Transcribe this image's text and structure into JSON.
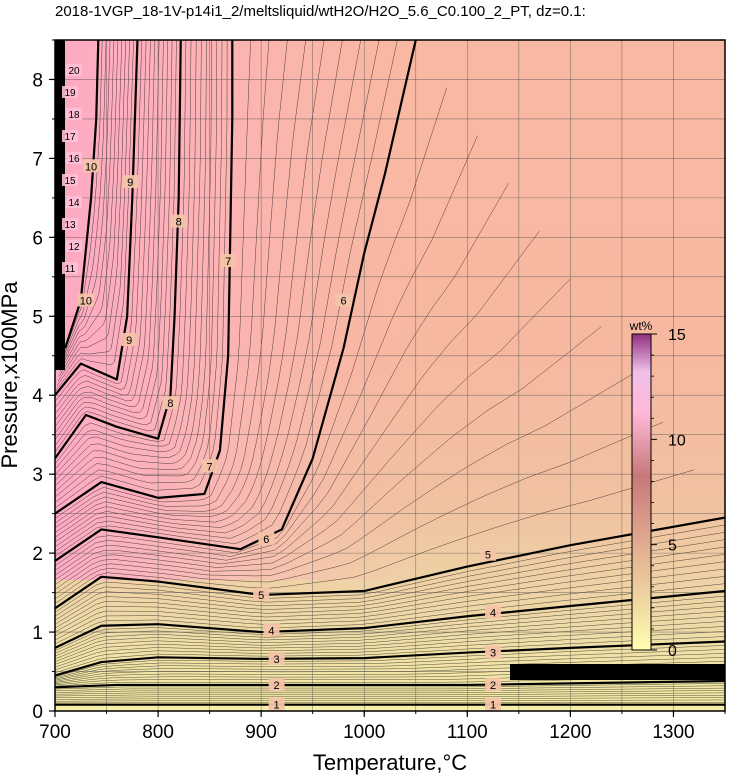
{
  "chart_data": {
    "type": "contour",
    "title": "2018-1VGP_18-1V-p14i1_2/meltsliquid/wtH2O/H2O_5.6_C0.100_2_PT, dz=0.1:",
    "xlabel": "Temperature,°C",
    "ylabel": "Pressure,x100MPa",
    "xlim": [
      700,
      1350
    ],
    "ylim": [
      0,
      8.5
    ],
    "x_ticks": [
      700,
      800,
      900,
      1000,
      1100,
      1200,
      1300
    ],
    "y_ticks": [
      0,
      1,
      2,
      3,
      4,
      5,
      6,
      7,
      8
    ],
    "grid": true,
    "colorbar": {
      "title": "wt%",
      "ticks": [
        0,
        5,
        10,
        15
      ],
      "range": [
        0,
        15
      ],
      "colors": [
        "#ffffb0",
        "#e8c898",
        "#c87878",
        "#ffb0d0",
        "#903080"
      ]
    },
    "contour_levels": [
      {
        "level": 1,
        "label": "1",
        "points": [
          [
            700,
            0.08
          ],
          [
            800,
            0.08
          ],
          [
            900,
            0.08
          ],
          [
            1000,
            0.08
          ],
          [
            1100,
            0.08
          ],
          [
            1200,
            0.08
          ],
          [
            1350,
            0.08
          ]
        ],
        "labels_at": [
          [
            915,
            0.08
          ],
          [
            1125,
            0.08
          ]
        ]
      },
      {
        "level": 2,
        "label": "2",
        "points": [
          [
            700,
            0.3
          ],
          [
            760,
            0.33
          ],
          [
            900,
            0.33
          ],
          [
            1100,
            0.33
          ],
          [
            1200,
            0.35
          ],
          [
            1350,
            0.38
          ]
        ],
        "labels_at": [
          [
            915,
            0.33
          ],
          [
            1125,
            0.33
          ]
        ]
      },
      {
        "level": 3,
        "label": "3",
        "points": [
          [
            700,
            0.45
          ],
          [
            745,
            0.62
          ],
          [
            800,
            0.68
          ],
          [
            900,
            0.66
          ],
          [
            1000,
            0.67
          ],
          [
            1100,
            0.74
          ],
          [
            1200,
            0.8
          ],
          [
            1350,
            0.88
          ]
        ],
        "labels_at": [
          [
            915,
            0.66
          ],
          [
            1125,
            0.74
          ]
        ]
      },
      {
        "level": 4,
        "label": "4",
        "points": [
          [
            700,
            0.8
          ],
          [
            745,
            1.08
          ],
          [
            800,
            1.1
          ],
          [
            900,
            1.0
          ],
          [
            1000,
            1.05
          ],
          [
            1100,
            1.2
          ],
          [
            1200,
            1.33
          ],
          [
            1350,
            1.52
          ]
        ],
        "labels_at": [
          [
            910,
            1.02
          ],
          [
            1125,
            1.25
          ]
        ]
      },
      {
        "level": 5,
        "label": "5",
        "points": [
          [
            700,
            1.3
          ],
          [
            745,
            1.7
          ],
          [
            800,
            1.64
          ],
          [
            900,
            1.47
          ],
          [
            1000,
            1.52
          ],
          [
            1100,
            1.83
          ],
          [
            1200,
            2.1
          ],
          [
            1350,
            2.45
          ]
        ],
        "labels_at": [
          [
            900,
            1.47
          ],
          [
            1120,
            1.98
          ]
        ]
      },
      {
        "level": 6,
        "label": "6",
        "points": [
          [
            700,
            1.9
          ],
          [
            745,
            2.3
          ],
          [
            800,
            2.2
          ],
          [
            880,
            2.05
          ],
          [
            920,
            2.3
          ],
          [
            950,
            3.2
          ],
          [
            980,
            4.6
          ],
          [
            1000,
            5.8
          ],
          [
            1020,
            6.8
          ],
          [
            1050,
            8.5
          ]
        ],
        "labels_at": [
          [
            905,
            2.18
          ],
          [
            980,
            5.2
          ]
        ]
      },
      {
        "level": 7,
        "label": "7",
        "points": [
          [
            700,
            2.5
          ],
          [
            745,
            2.9
          ],
          [
            800,
            2.7
          ],
          [
            845,
            2.75
          ],
          [
            860,
            3.3
          ],
          [
            868,
            4.5
          ],
          [
            870,
            6.0
          ],
          [
            872,
            7.5
          ],
          [
            872,
            8.5
          ]
        ],
        "labels_at": [
          [
            850,
            3.1
          ],
          [
            868,
            5.7
          ]
        ]
      },
      {
        "level": 8,
        "label": "8",
        "points": [
          [
            700,
            3.2
          ],
          [
            730,
            3.75
          ],
          [
            760,
            3.6
          ],
          [
            800,
            3.45
          ],
          [
            812,
            4.0
          ],
          [
            816,
            5.0
          ],
          [
            820,
            6.5
          ],
          [
            822,
            8.5
          ]
        ],
        "labels_at": [
          [
            812,
            3.9
          ],
          [
            820,
            6.2
          ]
        ]
      },
      {
        "level": 9,
        "label": "9",
        "points": [
          [
            700,
            4.0
          ],
          [
            725,
            4.4
          ],
          [
            760,
            4.2
          ],
          [
            770,
            5.0
          ],
          [
            775,
            6.5
          ],
          [
            780,
            8.5
          ]
        ],
        "labels_at": [
          [
            772,
            4.7
          ],
          [
            773,
            6.7
          ]
        ]
      },
      {
        "level": 10,
        "label": "10",
        "points": [
          [
            710,
            4.6
          ],
          [
            725,
            5.2
          ],
          [
            735,
            6.5
          ],
          [
            740,
            7.5
          ],
          [
            742,
            8.5
          ]
        ],
        "labels_at": [
          [
            730,
            5.2
          ],
          [
            735,
            6.9
          ]
        ]
      }
    ],
    "annotations": [
      "11",
      "12",
      "13",
      "14",
      "15",
      "16",
      "17",
      "18",
      "19",
      "20"
    ]
  }
}
